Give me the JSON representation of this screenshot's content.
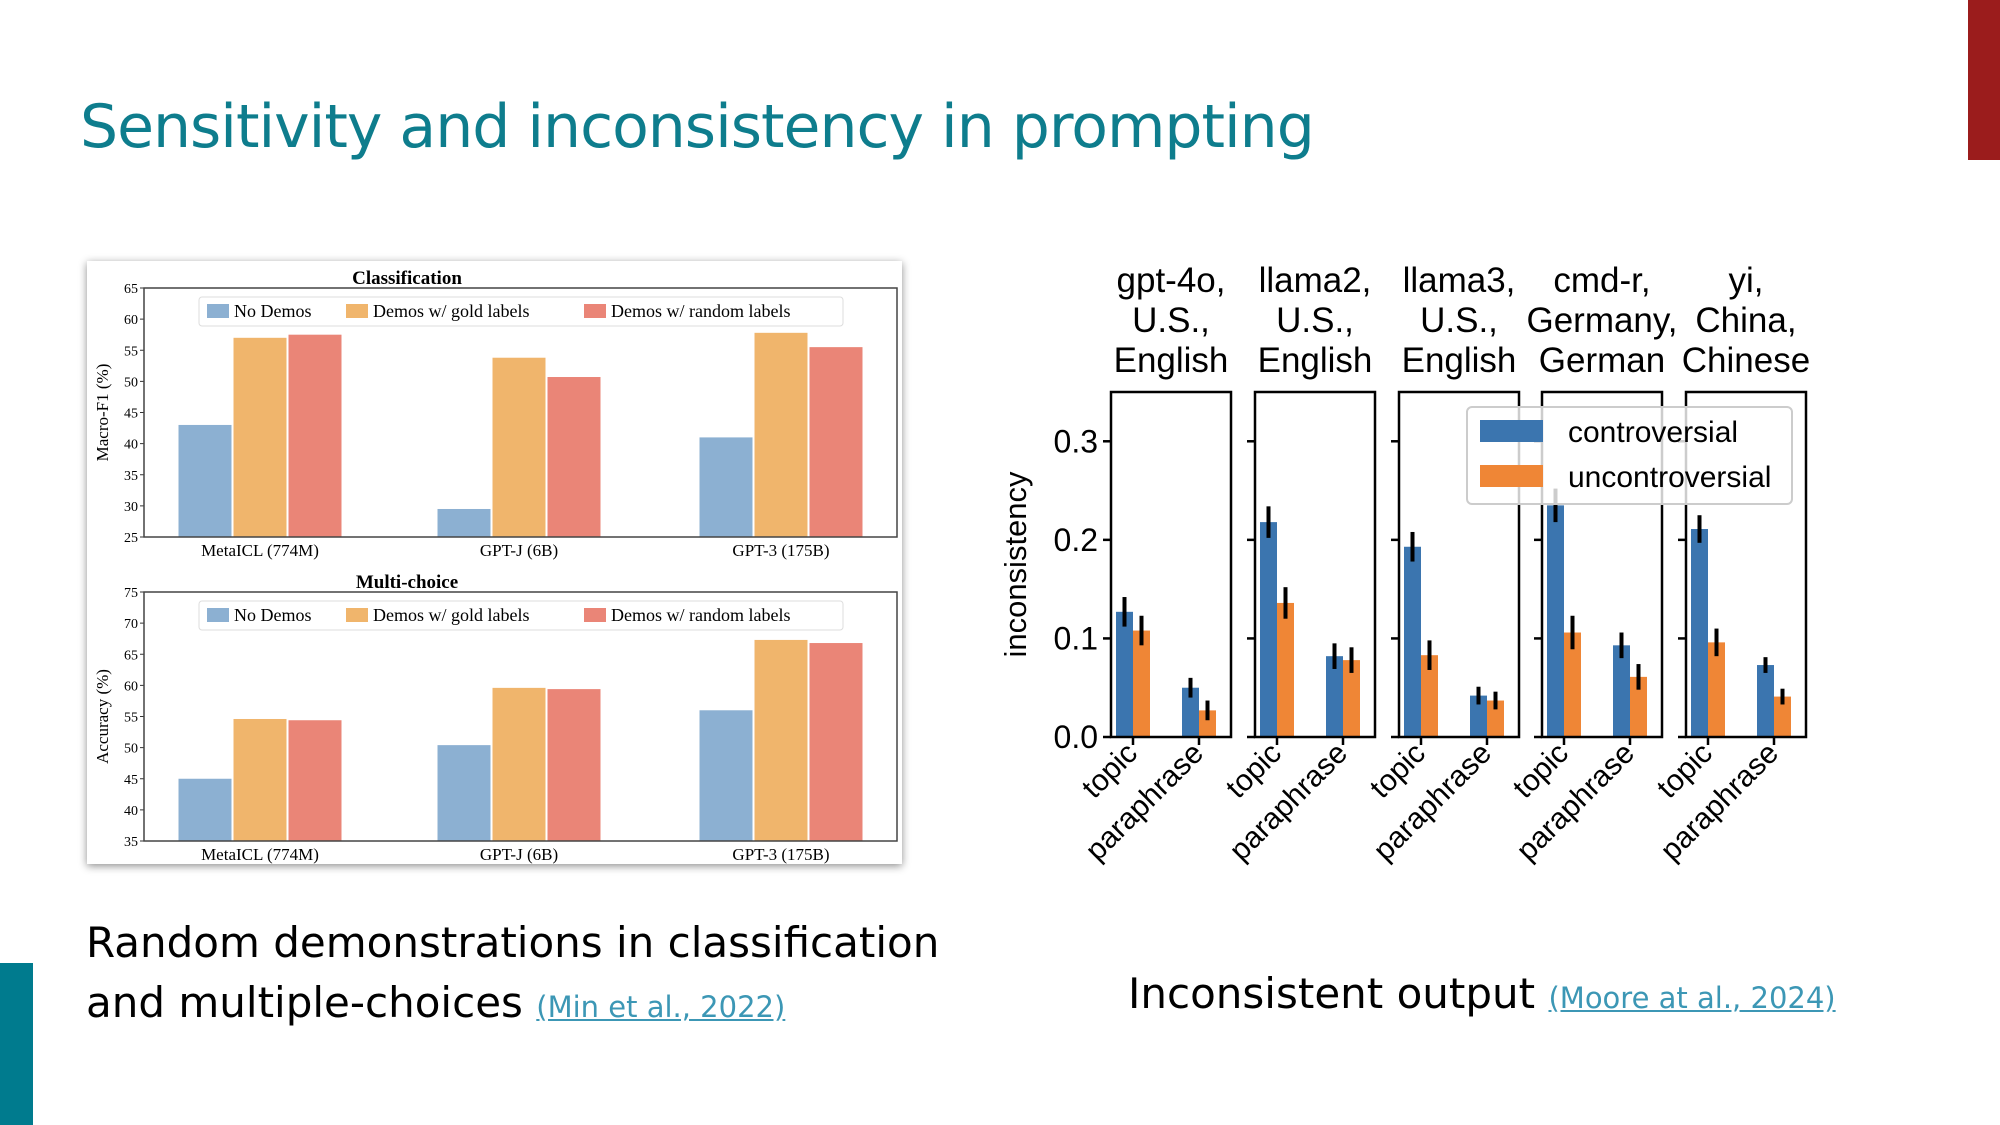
{
  "slide": {
    "title": "Sensitivity and inconsistency in prompting",
    "accent_color": "#0e7d8d",
    "left_caption": {
      "line1": "Random demonstrations in classification",
      "line2": "and multiple-choices",
      "citation": "(Min et al., 2022)"
    },
    "right_caption": {
      "text": "Inconsistent output",
      "citation": "(Moore at al., 2024)"
    }
  },
  "chart_data": [
    {
      "type": "bar",
      "title": "Classification",
      "ylabel": "Macro-F1 (%)",
      "ylim": [
        25,
        65
      ],
      "yticks": [
        25,
        30,
        35,
        40,
        45,
        50,
        55,
        60,
        65
      ],
      "categories": [
        "MetaICL (774M)",
        "GPT-J (6B)",
        "GPT-3 (175B)"
      ],
      "legend": "top-center",
      "series": [
        {
          "name": "No Demos",
          "color": "#8cb0d2",
          "values": [
            43.0,
            29.5,
            41.0
          ]
        },
        {
          "name": "Demos w/ gold labels",
          "color": "#f0b56c",
          "values": [
            57.0,
            53.8,
            57.8
          ]
        },
        {
          "name": "Demos w/ random labels",
          "color": "#ea8577",
          "values": [
            57.5,
            50.7,
            55.5
          ]
        }
      ]
    },
    {
      "type": "bar",
      "title": "Multi-choice",
      "ylabel": "Accuracy (%)",
      "ylim": [
        35,
        75
      ],
      "yticks": [
        35,
        40,
        45,
        50,
        55,
        60,
        65,
        70,
        75
      ],
      "categories": [
        "MetaICL (774M)",
        "GPT-J (6B)",
        "GPT-3 (175B)"
      ],
      "legend": "top-center",
      "series": [
        {
          "name": "No Demos",
          "color": "#8cb0d2",
          "values": [
            45.0,
            50.4,
            56.0
          ]
        },
        {
          "name": "Demos w/ gold labels",
          "color": "#f0b56c",
          "values": [
            54.6,
            59.6,
            67.3
          ]
        },
        {
          "name": "Demos w/ random labels",
          "color": "#ea8577",
          "values": [
            54.4,
            59.4,
            66.8
          ]
        }
      ]
    },
    {
      "type": "bar",
      "ylabel": "inconsistency",
      "ylim": [
        0,
        0.35
      ],
      "yticks": [
        "0.0",
        "0.1",
        "0.2",
        "0.3"
      ],
      "categories": [
        "topic",
        "paraphrase"
      ],
      "legend": "top-right",
      "series_names": [
        "controversial",
        "uncontroversial"
      ],
      "series_colors": [
        "#3b75af",
        "#ef8636"
      ],
      "panels": [
        {
          "title": [
            "gpt-4o,",
            "U.S.,",
            "English"
          ],
          "controversial": [
            0.127,
            0.05
          ],
          "uncontroversial": [
            0.108,
            0.027
          ],
          "err": [
            0.015,
            0.01
          ]
        },
        {
          "title": [
            "llama2,",
            "U.S.,",
            "English"
          ],
          "controversial": [
            0.218,
            0.082
          ],
          "uncontroversial": [
            0.136,
            0.078
          ],
          "err": [
            0.016,
            0.013
          ]
        },
        {
          "title": [
            "llama3,",
            "U.S.,",
            "English"
          ],
          "controversial": [
            0.193,
            0.042
          ],
          "uncontroversial": [
            0.083,
            0.037
          ],
          "err": [
            0.015,
            0.009
          ]
        },
        {
          "title": [
            "cmd-r,",
            "Germany,",
            "German"
          ],
          "controversial": [
            0.235,
            0.093
          ],
          "uncontroversial": [
            0.106,
            0.061
          ],
          "err": [
            0.017,
            0.013
          ]
        },
        {
          "title": [
            "yi,",
            "China,",
            "Chinese"
          ],
          "controversial": [
            0.211,
            0.073
          ],
          "uncontroversial": [
            0.096,
            0.041
          ],
          "err": [
            0.014,
            0.008
          ]
        }
      ]
    }
  ]
}
